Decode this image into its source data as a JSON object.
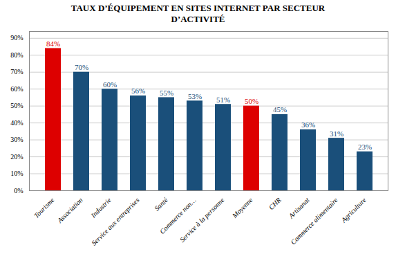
{
  "chart_data": {
    "type": "bar",
    "title": "TAUX D’ÉQUIPEMENT EN SITES INTERNET  PAR SECTEUR\nD’ACTIVITÉ",
    "categories": [
      "Tourisme",
      "Association",
      "Industrie",
      "Service aux entreprises",
      "Santé",
      "Commerce non…",
      "Service à la personne",
      "Moyenne",
      "CHR",
      "Artisanat",
      "Commerce alimentaire",
      "Agriculture"
    ],
    "values": [
      84,
      70,
      60,
      56,
      55,
      53,
      51,
      50,
      45,
      36,
      31,
      23
    ],
    "value_labels": [
      "84%",
      "70%",
      "60%",
      "56%",
      "55%",
      "53%",
      "51%",
      "50%",
      "45%",
      "36%",
      "31%",
      "23%"
    ],
    "colors": [
      "#dd0000",
      "#1a4f7a",
      "#1a4f7a",
      "#1a4f7a",
      "#1a4f7a",
      "#1a4f7a",
      "#1a4f7a",
      "#dd0000",
      "#1a4f7a",
      "#1a4f7a",
      "#1a4f7a",
      "#1a4f7a"
    ],
    "ylim": [
      0,
      94
    ],
    "yticks": [
      {
        "value": 0,
        "label": "0%"
      },
      {
        "value": 10,
        "label": "10%"
      },
      {
        "value": 20,
        "label": "20%"
      },
      {
        "value": 30,
        "label": "30%"
      },
      {
        "value": 40,
        "label": "40%"
      },
      {
        "value": 50,
        "label": "50%"
      },
      {
        "value": 60,
        "label": "60%"
      },
      {
        "value": 70,
        "label": "70%"
      },
      {
        "value": 80,
        "label": "80%"
      },
      {
        "value": 90,
        "label": "90%"
      }
    ],
    "grid": true,
    "data_labels": true
  }
}
